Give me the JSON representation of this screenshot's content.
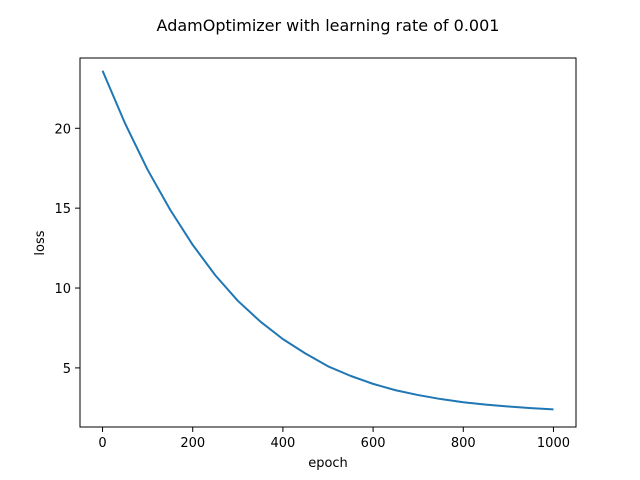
{
  "chart_data": {
    "type": "line",
    "title": "AdamOptimizer with learning rate of 0.001",
    "xlabel": "epoch",
    "ylabel": "loss",
    "xlim": [
      -50,
      1050
    ],
    "ylim": [
      1.3,
      24.4
    ],
    "xticks": [
      0,
      200,
      400,
      600,
      800,
      1000
    ],
    "yticks": [
      5,
      10,
      15,
      20
    ],
    "grid": false,
    "series": [
      {
        "color": "#1f77b4",
        "x": [
          0,
          50,
          100,
          150,
          200,
          250,
          300,
          350,
          400,
          450,
          500,
          550,
          600,
          650,
          700,
          750,
          800,
          850,
          900,
          950,
          1000
        ],
        "y": [
          23.6,
          20.3,
          17.4,
          14.9,
          12.7,
          10.8,
          9.2,
          7.9,
          6.8,
          5.9,
          5.1,
          4.5,
          4.0,
          3.6,
          3.3,
          3.05,
          2.85,
          2.7,
          2.58,
          2.48,
          2.4
        ]
      }
    ]
  }
}
